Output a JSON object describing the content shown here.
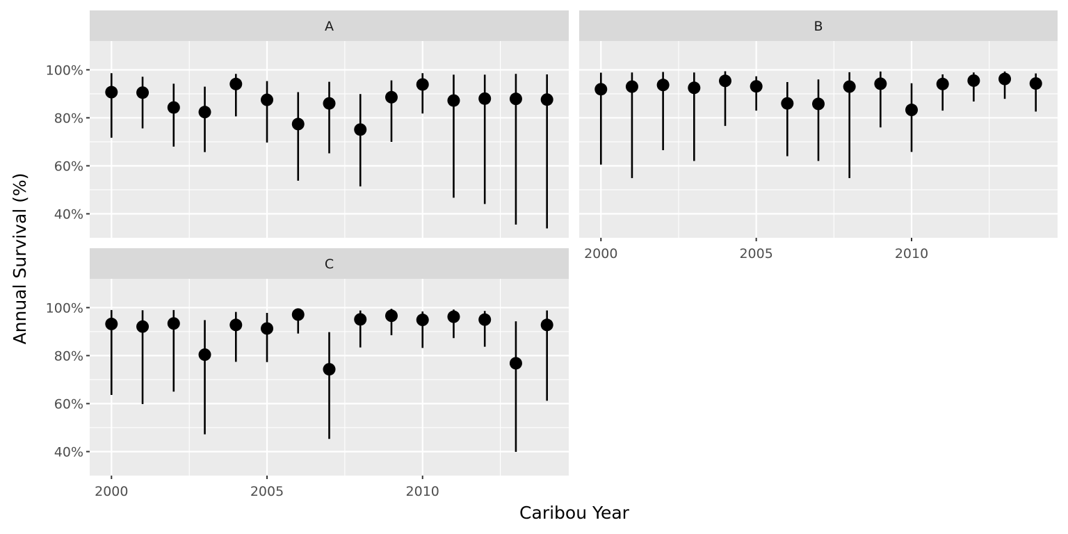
{
  "chart_data": {
    "type": "scatter",
    "xlabel": "Caribou Year",
    "ylabel": "Annual Survival (%)",
    "xlim": [
      1999.3,
      2014.7
    ],
    "ylim": [
      30,
      112
    ],
    "x_ticks": [
      2000,
      2005,
      2010
    ],
    "y_ticks": [
      40,
      60,
      80,
      100
    ],
    "y_tick_format": "{v}%",
    "grid": true,
    "layout": "facet-wrap 2 columns",
    "facets": [
      {
        "label": "A",
        "x": [
          2000,
          2001,
          2002,
          2003,
          2004,
          2005,
          2006,
          2007,
          2008,
          2009,
          2010,
          2011,
          2012,
          2013,
          2014
        ],
        "y": [
          90.7,
          90.5,
          84.3,
          82.4,
          94.1,
          87.5,
          77.4,
          86.0,
          75.1,
          88.6,
          93.9,
          87.2,
          88.0,
          87.9,
          87.6
        ],
        "lower": [
          71.7,
          75.6,
          68.0,
          65.7,
          80.6,
          69.7,
          53.8,
          65.2,
          51.4,
          70.0,
          81.8,
          46.7,
          44.1,
          35.5,
          33.9
        ],
        "upper": [
          98.6,
          97.1,
          94.2,
          93.0,
          98.3,
          95.3,
          90.7,
          95.0,
          89.9,
          95.6,
          98.6,
          98.0,
          98.0,
          98.3,
          98.1
        ]
      },
      {
        "label": "B",
        "x": [
          2000,
          2001,
          2002,
          2003,
          2004,
          2005,
          2006,
          2007,
          2008,
          2009,
          2010,
          2011,
          2012,
          2013,
          2014
        ],
        "y": [
          91.9,
          93.0,
          93.7,
          92.5,
          95.4,
          93.1,
          86.0,
          85.8,
          93.0,
          94.2,
          83.3,
          94.1,
          95.5,
          96.2,
          94.3
        ],
        "lower": [
          60.5,
          54.9,
          66.5,
          62.0,
          76.6,
          83.0,
          64.0,
          62.0,
          54.9,
          76.0,
          65.8,
          83.0,
          86.8,
          87.9,
          82.6
        ],
        "upper": [
          98.8,
          98.9,
          99.1,
          98.9,
          99.4,
          97.3,
          94.9,
          96.0,
          99.0,
          99.3,
          94.4,
          98.1,
          98.9,
          99.3,
          98.5
        ]
      },
      {
        "label": "C",
        "x": [
          2000,
          2001,
          2002,
          2003,
          2004,
          2005,
          2006,
          2007,
          2008,
          2009,
          2010,
          2011,
          2012,
          2013,
          2014
        ],
        "y": [
          93.2,
          92.1,
          93.4,
          80.4,
          92.8,
          91.3,
          97.1,
          74.3,
          95.1,
          96.6,
          94.9,
          96.2,
          95.0,
          76.8,
          92.8
        ],
        "lower": [
          63.6,
          59.8,
          65.0,
          47.2,
          77.4,
          77.3,
          89.2,
          45.3,
          83.4,
          88.5,
          83.2,
          87.3,
          83.7,
          39.9,
          61.2
        ],
        "upper": [
          99.0,
          98.9,
          99.0,
          94.8,
          98.2,
          97.8,
          99.1,
          89.8,
          98.8,
          99.5,
          98.4,
          99.2,
          98.6,
          94.3,
          98.8
        ]
      }
    ]
  }
}
